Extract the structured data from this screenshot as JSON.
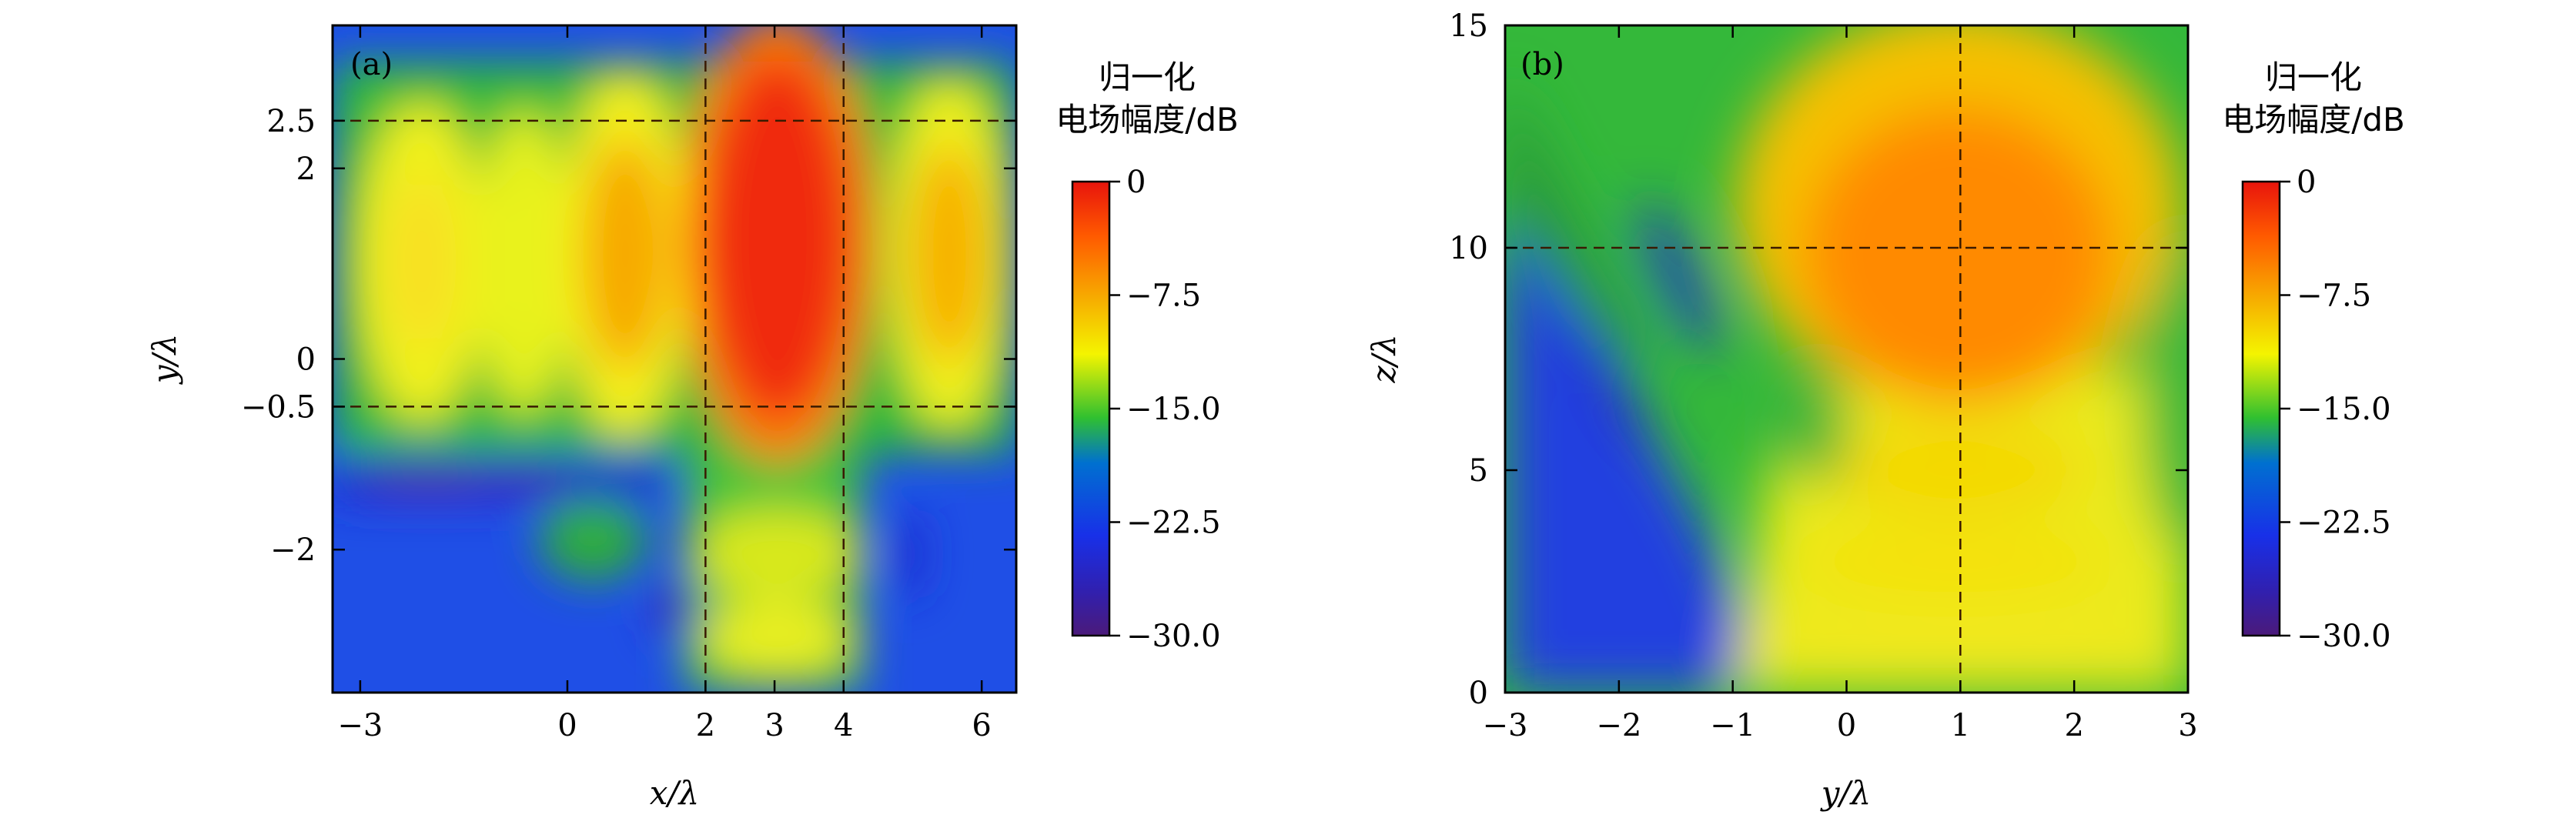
{
  "chart_data": [
    {
      "type": "heatmap",
      "panel_label": "(a)",
      "xlabel": "x/λ",
      "ylabel": "y/λ",
      "xlim": [
        -3.4,
        6.5
      ],
      "ylim": [
        -3.5,
        3.5
      ],
      "x_ticks": [
        -3,
        0,
        2,
        3,
        4,
        6
      ],
      "x_tick_labels": [
        "−3",
        "0",
        "2",
        "3",
        "4",
        "6"
      ],
      "y_ticks": [
        2.5,
        2,
        0,
        -0.5,
        -2
      ],
      "y_tick_labels": [
        "2.5",
        "2",
        "0",
        "−0.5",
        "−2"
      ],
      "guide_lines": {
        "x": [
          2,
          4
        ],
        "y": [
          2.5,
          -0.5
        ]
      },
      "colorbar": {
        "title_line1": "归一化",
        "title_line2": "电场幅度/dB",
        "range": [
          -30.0,
          0
        ],
        "ticks": [
          0,
          -7.5,
          -15.0,
          -22.5,
          -30.0
        ],
        "tick_labels": [
          "0",
          "−7.5",
          "−15.0",
          "−22.5",
          "−30.0"
        ]
      },
      "colormap": "jet",
      "features": [
        {
          "description_type": "main_lobe",
          "x_range": [
            2,
            4
          ],
          "y_range": [
            -1.2,
            2.8
          ],
          "peak_db": 0
        },
        {
          "description_type": "side_lobe",
          "x_center": 0.8,
          "y_center": 1.1,
          "peak_db": -6
        },
        {
          "description_type": "side_lobe",
          "x_center": 5.4,
          "y_center": 1.1,
          "peak_db": -7
        },
        {
          "description_type": "side_lobe",
          "x_center": -2.2,
          "y_center": 1.1,
          "peak_db": -10
        }
      ]
    },
    {
      "type": "heatmap",
      "panel_label": "(b)",
      "xlabel": "y/λ",
      "ylabel": "z/λ",
      "xlim": [
        -3,
        3
      ],
      "ylim": [
        0,
        15
      ],
      "x_ticks": [
        -3,
        -2,
        -1,
        0,
        1,
        2,
        3
      ],
      "x_tick_labels": [
        "−3",
        "−2",
        "−1",
        "0",
        "1",
        "2",
        "3"
      ],
      "y_ticks": [
        0,
        5,
        10,
        15
      ],
      "y_tick_labels": [
        "0",
        "5",
        "10",
        "15"
      ],
      "guide_lines": {
        "x": [
          1
        ],
        "y": [
          10
        ]
      },
      "colorbar": {
        "title_line1": "归一化",
        "title_line2": "电场幅度/dB",
        "range": [
          -30.0,
          0
        ],
        "ticks": [
          0,
          -7.5,
          -15.0,
          -22.5,
          -30.0
        ],
        "tick_labels": [
          "0",
          "−7.5",
          "−15.0",
          "−22.5",
          "−30.0"
        ]
      },
      "colormap": "jet",
      "features": [
        {
          "description_type": "focal_spot",
          "y_center": 1,
          "z_center": 10,
          "peak_db": -3
        }
      ]
    }
  ]
}
